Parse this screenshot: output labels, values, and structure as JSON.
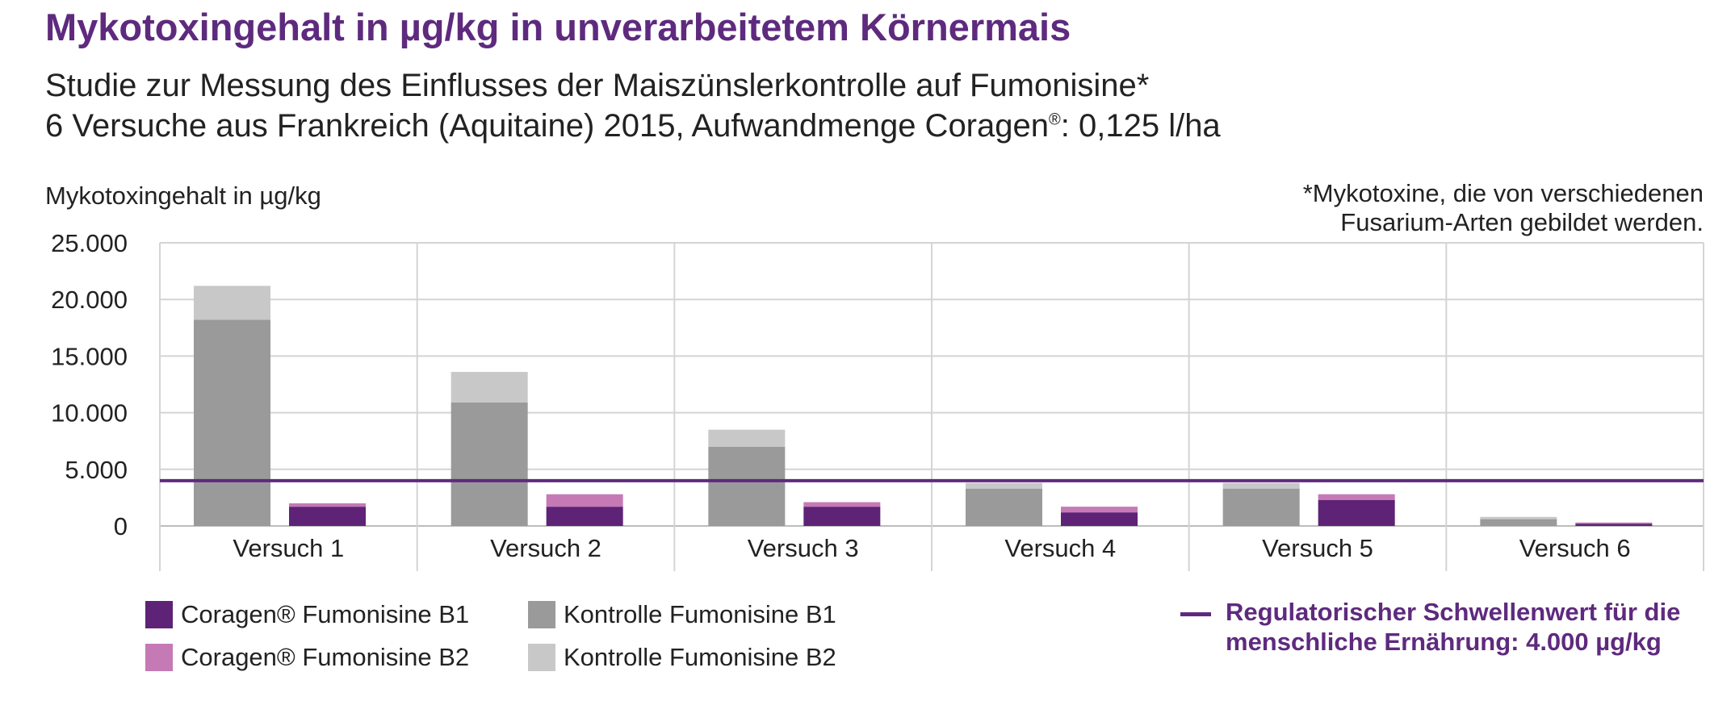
{
  "title": "Mykotoxingehalt in µg/kg in unverarbeitetem Körnermais",
  "subtitle_line1": "Studie zur Messung des Einflusses der Maiszünslerkontrolle auf Fumonisine*",
  "subtitle_line2_prefix": "6 Versuche aus Frankreich (Aquitaine) 2015, Aufwandmenge Coragen",
  "subtitle_line2_reg": "®",
  "subtitle_line2_suffix": ": 0,125 l/ha",
  "footnote_line1": "*Mykotoxine, die von verschiedenen",
  "footnote_line2": "Fusarium-Arten gebildet werden.",
  "threshold_legend_line1": "Regulatorischer Schwellenwert für die",
  "threshold_legend_line2": "menschliche Ernährung: 4.000 µg/kg",
  "chart_data": {
    "type": "bar",
    "stacked": true,
    "ylabel": "Mykotoxingehalt in µg/kg",
    "ylim": [
      0,
      25000
    ],
    "yticks": [
      0,
      5000,
      10000,
      15000,
      20000,
      25000
    ],
    "ytick_labels": [
      "0",
      "5.000",
      "10.000",
      "15.000",
      "20.000",
      "25.000"
    ],
    "categories": [
      "Versuch 1",
      "Versuch 2",
      "Versuch 3",
      "Versuch 4",
      "Versuch 5",
      "Versuch 6"
    ],
    "groups": [
      {
        "name": "Kontrolle",
        "series": [
          {
            "name": "Kontrolle Fumonisine B1",
            "color": "#9a9a9a",
            "values": [
              18200,
              10900,
              7000,
              3300,
              3300,
              600
            ]
          },
          {
            "name": "Kontrolle Fumonisine B2",
            "color": "#c8c8c8",
            "values": [
              3000,
              2700,
              1500,
              500,
              500,
              200
            ]
          }
        ]
      },
      {
        "name": "Coragen",
        "series": [
          {
            "name": "Coragen® Fumonisine B1",
            "color": "#5e2276",
            "values": [
              1700,
              1700,
              1700,
              1200,
              2300,
              200
            ]
          },
          {
            "name": "Coragen® Fumonisine B2",
            "color": "#c57ab6",
            "values": [
              300,
              1100,
              400,
              500,
              500,
              100
            ]
          }
        ]
      }
    ],
    "threshold": {
      "value": 4000,
      "color": "#5e2a7e",
      "label": "Regulatorischer Schwellenwert für die menschliche Ernährung: 4.000 µg/kg"
    },
    "grid": true,
    "legend_position": "bottom"
  }
}
